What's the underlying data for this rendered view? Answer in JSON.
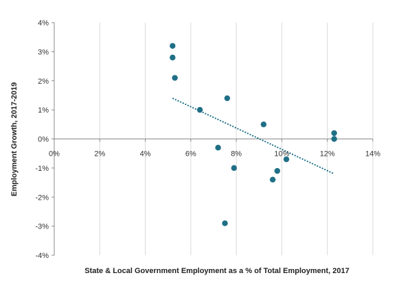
{
  "chart_data": {
    "type": "scatter",
    "title": "",
    "xlabel": "State & Local Government Employment as a % of Total Employment, 2017",
    "ylabel": "Employment Growth, 2017-2019",
    "xlim": [
      0,
      14
    ],
    "ylim": [
      -4,
      4
    ],
    "x_ticks": [
      0,
      2,
      4,
      6,
      8,
      10,
      12,
      14
    ],
    "y_ticks": [
      -4,
      -3,
      -2,
      -1,
      0,
      1,
      2,
      3,
      4
    ],
    "x_tick_labels": [
      "0%",
      "2%",
      "4%",
      "6%",
      "8%",
      "10%",
      "12%",
      "14%"
    ],
    "y_tick_labels": [
      "-4%",
      "-3%",
      "-2%",
      "-1%",
      "0%",
      "1%",
      "2%",
      "3%",
      "4%"
    ],
    "grid": "vertical",
    "legend": "none",
    "colors": {
      "points": "#1f6f86",
      "trendline": "#1f6f86",
      "grid": "#d9d9d9",
      "zero_line": "#888888"
    },
    "points": [
      {
        "x": 5.2,
        "y": 3.2
      },
      {
        "x": 5.2,
        "y": 2.8
      },
      {
        "x": 5.3,
        "y": 2.1
      },
      {
        "x": 6.4,
        "y": 1.0
      },
      {
        "x": 7.2,
        "y": -0.3
      },
      {
        "x": 7.5,
        "y": -2.9
      },
      {
        "x": 7.6,
        "y": 1.4
      },
      {
        "x": 7.9,
        "y": -1.0
      },
      {
        "x": 9.2,
        "y": 0.5
      },
      {
        "x": 9.6,
        "y": -1.4
      },
      {
        "x": 9.8,
        "y": -1.1
      },
      {
        "x": 10.2,
        "y": -0.7
      },
      {
        "x": 12.3,
        "y": 0.2
      },
      {
        "x": 12.3,
        "y": 0.0
      }
    ],
    "trendline": {
      "style": "dotted",
      "from": {
        "x": 5.2,
        "y": 1.4
      },
      "to": {
        "x": 12.3,
        "y": -1.2
      }
    }
  }
}
